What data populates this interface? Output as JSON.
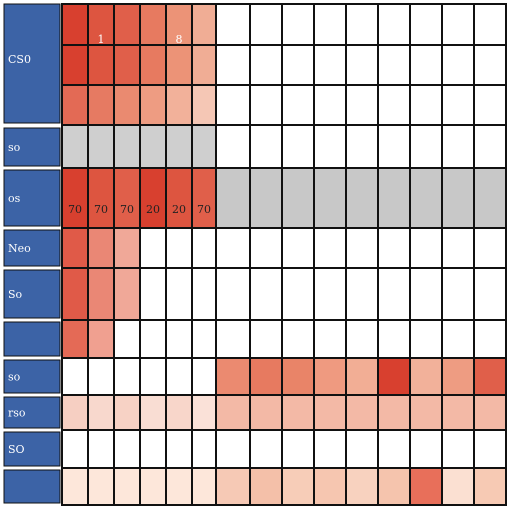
{
  "row_labels": [
    "CS0",
    "so",
    "os",
    "Neo",
    "So",
    "so",
    "rso",
    "SO"
  ],
  "header_marks": [
    "1",
    "8"
  ],
  "highlight_row": [
    "70",
    "70",
    "70",
    "20",
    "20",
    "70"
  ]
}
